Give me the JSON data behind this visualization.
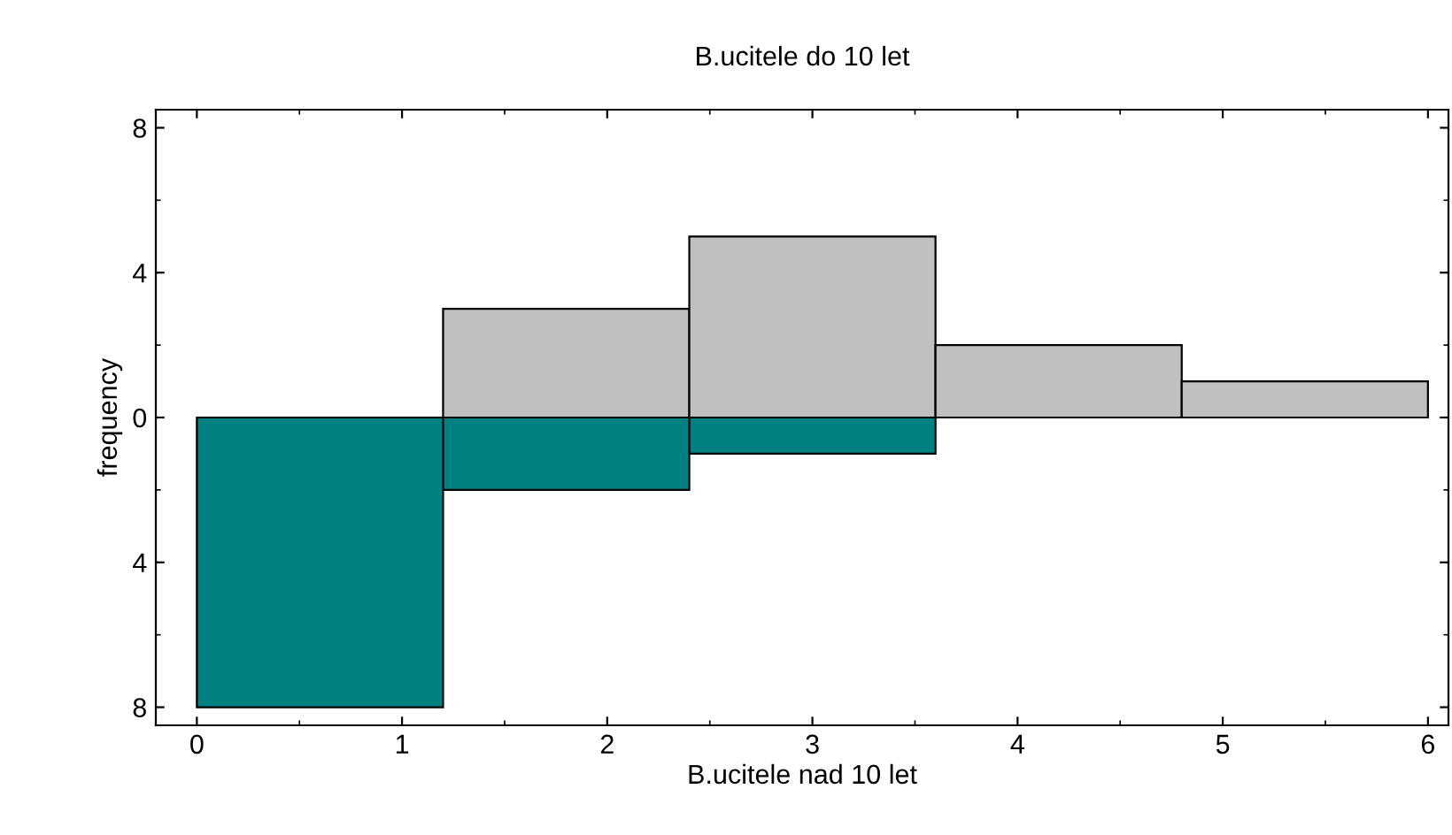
{
  "chart_data": {
    "type": "histogram",
    "title": "B.ucitele do 10 let",
    "xlabel": "B.ucitele nad 10 let",
    "ylabel": "frequency",
    "bins": [
      0,
      1.2,
      2.4,
      3.6,
      4.8,
      6
    ],
    "series": [
      {
        "color": "#c0c0c0",
        "values": [
          0,
          3,
          5,
          2,
          1
        ]
      },
      {
        "color": "#008080",
        "values": [
          -8,
          -2,
          -1,
          0,
          0
        ]
      }
    ],
    "xlim": [
      -0.2,
      6.1
    ],
    "xticks": [
      0,
      1,
      2,
      3,
      4,
      5,
      6
    ],
    "ylim": [
      -8.5,
      8.5
    ],
    "yticks": [
      {
        "value": -8,
        "label": "8"
      },
      {
        "value": -4,
        "label": "4"
      },
      0,
      4,
      8
    ],
    "grid": false,
    "legend": false
  }
}
